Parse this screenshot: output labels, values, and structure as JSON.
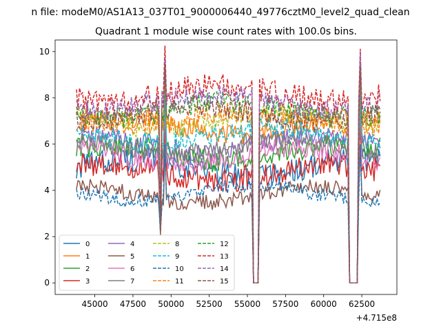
{
  "chart_data": {
    "type": "line",
    "suptitle": "n file: modeM0/AS1A13_037T01_9000006440_49776cztM0_level2_quad_clean",
    "title": "Quadrant 1 module wise count rates with 100.0s bins.",
    "xlabel": "",
    "ylabel": "",
    "x_offset_label": "+4.715e8",
    "xlim": [
      42400,
      64800
    ],
    "ylim": [
      -0.5,
      10.5
    ],
    "x_ticks": [
      45000,
      47500,
      50000,
      52500,
      55000,
      57500,
      60000,
      62500
    ],
    "x_tick_labels": [
      "45000",
      "47500",
      "50000",
      "52500",
      "55000",
      "57500",
      "60000",
      "62500"
    ],
    "y_ticks": [
      0,
      2,
      4,
      6,
      8,
      10
    ],
    "y_tick_labels": [
      "0",
      "2",
      "4",
      "6",
      "8",
      "10"
    ],
    "x_range": [
      43800,
      63700
    ],
    "bin_seconds": 100,
    "legend_location": "lower-left",
    "legend_columns": 4,
    "gaps": [
      [
        55300,
        55800
      ],
      [
        61600,
        62300
      ]
    ],
    "dip": [
      49250,
      49400
    ],
    "spike_x": [
      49600,
      62400
    ],
    "series": [
      {
        "name": "0",
        "color": "#1f77b4",
        "dashed": false,
        "level": 5.0,
        "amp": 0.55
      },
      {
        "name": "1",
        "color": "#ff7f0e",
        "dashed": false,
        "level": 6.8,
        "amp": 0.45
      },
      {
        "name": "2",
        "color": "#2ca02c",
        "dashed": false,
        "level": 5.6,
        "amp": 0.5
      },
      {
        "name": "3",
        "color": "#d62728",
        "dashed": false,
        "level": 4.8,
        "amp": 0.55
      },
      {
        "name": "4",
        "color": "#9467bd",
        "dashed": false,
        "level": 6.0,
        "amp": 0.45
      },
      {
        "name": "5",
        "color": "#8c564b",
        "dashed": false,
        "level": 3.8,
        "amp": 0.35
      },
      {
        "name": "6",
        "color": "#e377c2",
        "dashed": false,
        "level": 5.5,
        "amp": 0.45
      },
      {
        "name": "7",
        "color": "#7f7f7f",
        "dashed": false,
        "level": 5.9,
        "amp": 0.4
      },
      {
        "name": "8",
        "color": "#bcbd22",
        "dashed": true,
        "level": 7.0,
        "amp": 0.45
      },
      {
        "name": "9",
        "color": "#17becf",
        "dashed": true,
        "level": 6.4,
        "amp": 0.45
      },
      {
        "name": "10",
        "color": "#1f77b4",
        "dashed": true,
        "level": 3.9,
        "amp": 0.3
      },
      {
        "name": "11",
        "color": "#ff7f0e",
        "dashed": true,
        "level": 7.1,
        "amp": 0.45
      },
      {
        "name": "12",
        "color": "#2ca02c",
        "dashed": true,
        "level": 7.5,
        "amp": 0.45
      },
      {
        "name": "13",
        "color": "#d62728",
        "dashed": true,
        "level": 8.2,
        "amp": 0.55
      },
      {
        "name": "14",
        "color": "#9467bd",
        "dashed": true,
        "level": 7.8,
        "amp": 0.45
      },
      {
        "name": "15",
        "color": "#8c564b",
        "dashed": true,
        "level": 7.3,
        "amp": 0.45
      }
    ]
  }
}
